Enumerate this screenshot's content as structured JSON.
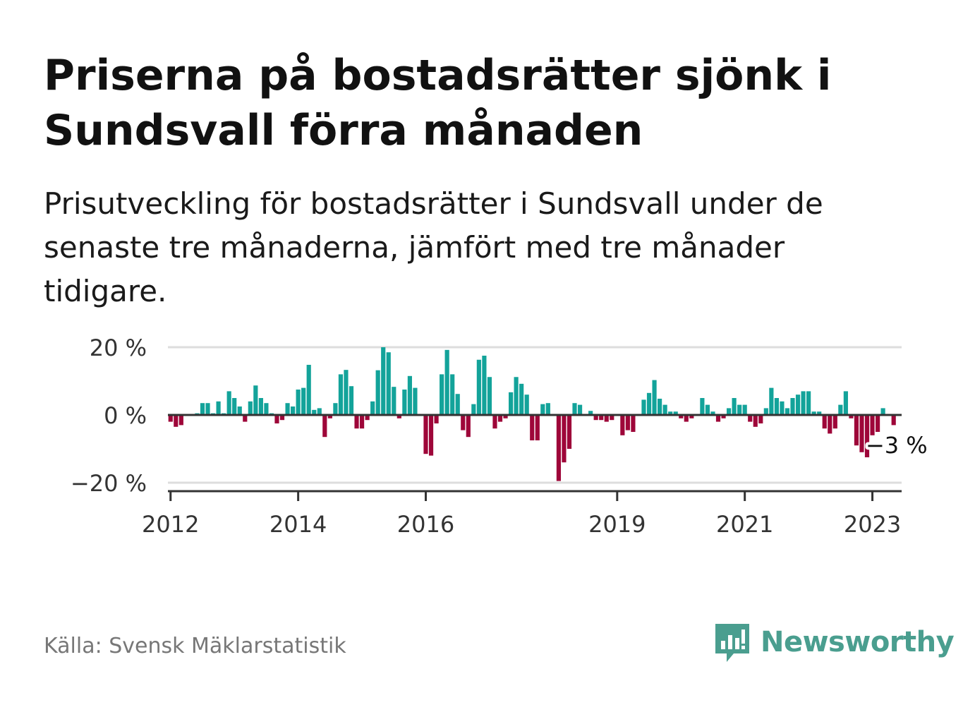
{
  "title": "Priserna på bostadsrätter sjönk i Sundsvall förra månaden",
  "subtitle": "Prisutveckling för bostadsrätter i Sundsvall under de senaste tre månaderna, jämfört med tre månader tidigare.",
  "source": "Källa: Svensk Mäklarstatistik",
  "brand": {
    "name": "Newsworthy",
    "color": "#4a9e8f"
  },
  "colors": {
    "positive": "#13a39a",
    "negative": "#9e0639",
    "axis": "#333333",
    "grid": "#dddddd"
  },
  "chart_data": {
    "type": "bar",
    "x_start": "2012-01",
    "x_end": "2023-06",
    "x_ticks": [
      {
        "label": "2012",
        "year": 2012
      },
      {
        "label": "2014",
        "year": 2014
      },
      {
        "label": "2016",
        "year": 2016
      },
      {
        "label": "2019",
        "year": 2019
      },
      {
        "label": "2021",
        "year": 2021
      },
      {
        "label": "2023",
        "year": 2023
      }
    ],
    "y_ticks": [
      {
        "label": "20 %",
        "value": 20
      },
      {
        "label": "0 %",
        "value": 0
      },
      {
        "label": "−20 %",
        "value": -20
      }
    ],
    "ylim": [
      -22,
      21
    ],
    "annotation": {
      "label": "−3 %",
      "value": -3
    },
    "values": [
      -2,
      -3.5,
      -3,
      0,
      0,
      0.5,
      3.5,
      3.5,
      0.5,
      4,
      0.5,
      7,
      5,
      2.5,
      -2,
      4,
      8.7,
      5,
      3.5,
      0.5,
      -2.5,
      -1.5,
      3.5,
      2.5,
      7.5,
      8,
      14.8,
      1.5,
      2,
      -6.5,
      -1,
      3.5,
      12,
      13.3,
      8.5,
      -4,
      -4,
      -1.5,
      4,
      13.2,
      20,
      18.5,
      8.3,
      -1,
      7.5,
      11.5,
      8,
      0,
      -11.5,
      -12,
      -2.5,
      12,
      19.2,
      12,
      6.2,
      -4.5,
      -6.5,
      3.2,
      16.3,
      17.5,
      11.2,
      -4,
      -2,
      -1,
      6.7,
      11.2,
      9.2,
      6,
      -7.5,
      -7.5,
      3.2,
      3.5,
      0,
      -19.5,
      -14,
      -10,
      3.5,
      3,
      0,
      1.2,
      -1.5,
      -1.5,
      -2,
      -1.5,
      0,
      -6,
      -4.5,
      -5,
      0,
      4.5,
      6.5,
      10.3,
      4.8,
      3,
      1,
      1,
      -1,
      -2,
      -1,
      0,
      5,
      3,
      1,
      -2,
      -1,
      2,
      5,
      3,
      3,
      -2,
      -3.5,
      -2.5,
      2,
      8,
      5,
      4,
      2,
      5,
      6,
      7,
      7,
      1,
      1,
      -4,
      -5.5,
      -4,
      3,
      7,
      -1,
      -9,
      -11,
      -12.5,
      -6,
      -5,
      2,
      0,
      -3
    ]
  }
}
